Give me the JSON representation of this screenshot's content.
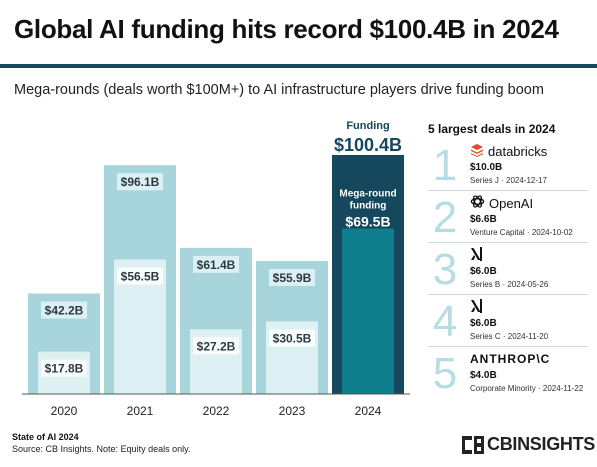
{
  "title": "Global AI funding hits record $100.4B in 2024",
  "subtitle": "Mega-rounds (deals worth $100M+) to AI infrastructure players drive funding boom",
  "chart_data": {
    "type": "bar",
    "categories": [
      "2020",
      "2021",
      "2022",
      "2023",
      "2024"
    ],
    "series": [
      {
        "name": "Funding",
        "values": [
          42.2,
          96.1,
          61.4,
          55.9,
          100.4
        ]
      },
      {
        "name": "Mega-round funding",
        "values": [
          17.8,
          56.5,
          27.2,
          30.5,
          69.5
        ]
      }
    ],
    "total_labels": [
      "$42.2B",
      "$96.1B",
      "$61.4B",
      "$55.9B",
      "$100.4B"
    ],
    "mega_labels": [
      "$17.8B",
      "$56.5B",
      "$27.2B",
      "$30.5B",
      "$69.5B"
    ],
    "highlight_total_caption": "Funding",
    "highlight_mega_caption": [
      "Mega-round",
      "funding"
    ],
    "ylim": [
      0,
      100.4
    ],
    "grid": false,
    "colors": {
      "total": "#a8d5dc",
      "mega": "#ddf1f4",
      "highlight_total": "#15475d",
      "highlight_mega": "#0e7d8c",
      "label_dark": "#2d3a40",
      "highlight_text": "#15475d"
    }
  },
  "deals": {
    "title": "5 largest deals in 2024",
    "items": [
      {
        "rank": "1",
        "company": "databricks",
        "icon": "databricks-icon",
        "amount": "$10.0B",
        "meta": "Series J · 2024-12-17"
      },
      {
        "rank": "2",
        "company": "OpenAI",
        "icon": "openai-icon",
        "amount": "$6.6B",
        "meta": "Venture Capital · 2024-10-02"
      },
      {
        "rank": "3",
        "company": "",
        "icon": "xai-icon",
        "amount": "$6.0B",
        "meta": "Series B · 2024-05-26"
      },
      {
        "rank": "4",
        "company": "",
        "icon": "xai-icon",
        "amount": "$6.0B",
        "meta": "Series C · 2024-11-20"
      },
      {
        "rank": "5",
        "company": "ANTHROP\\C",
        "icon": "",
        "amount": "$4.0B",
        "meta": "Corporate Minority · 2024-11-22"
      }
    ]
  },
  "footer": {
    "line1": "State of AI 2024",
    "line2": "Source: CB Insights. Note: Equity deals only."
  },
  "brand": "CBINSIGHTS"
}
